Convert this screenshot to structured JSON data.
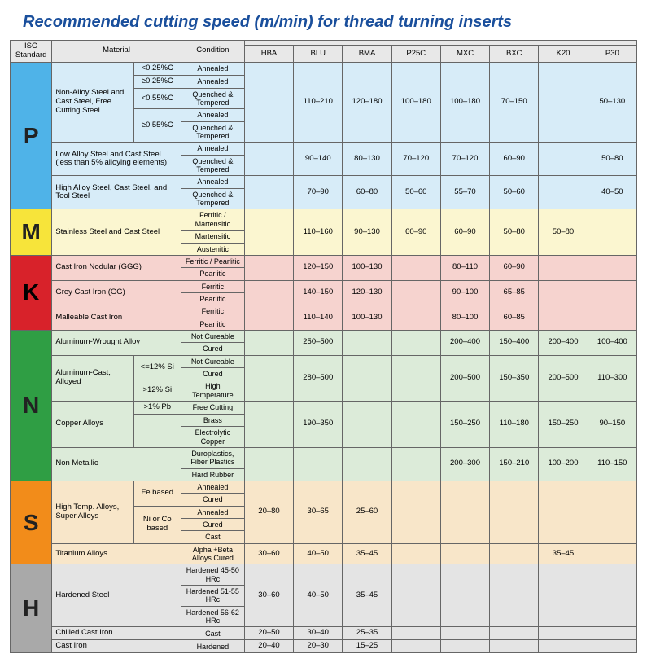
{
  "title": "Recommended cutting speed (m/min) for thread turning inserts",
  "headers": {
    "iso": "ISO Standard",
    "material": "Material",
    "condition": "Condition",
    "cols": [
      "HBA",
      "BLU",
      "BMA",
      "P25C",
      "MXC",
      "BXC",
      "K20",
      "P30"
    ]
  },
  "groups": [
    {
      "iso": "P",
      "isoClass": "bg-P",
      "rowClass": "rg-P",
      "rows": [
        {
          "material": "Non-Alloy Steel and Cast Steel, Free Cutting Steel",
          "matRowspan": 5,
          "sub": "<0.25%C",
          "condition": "Annealed",
          "vals": {
            "HBA": "",
            "BLU": "110–210",
            "BMA": "120–180",
            "P25C": "100–180",
            "MXC": "100–180",
            "BXC": "70–150",
            "K20": "",
            "P30": "50–130"
          },
          "valRowspan": 5
        },
        {
          "sub": "≥0.25%C",
          "condition": "Annealed"
        },
        {
          "sub": "<0.55%C",
          "subRowspan": 1,
          "condition": "Quenched & Tempered"
        },
        {
          "sub": "≥0.55%C",
          "subRowspan": 2,
          "condition": "Annealed"
        },
        {
          "condition": "Quenched & Tempered"
        },
        {
          "material": "Low Alloy Steel and Cast Steel (less than 5% alloying elements)",
          "matRowspan": 2,
          "matColspan": 2,
          "condition": "Annealed",
          "vals": {
            "HBA": "",
            "BLU": "90–140",
            "BMA": "80–130",
            "P25C": "70–120",
            "MXC": "70–120",
            "BXC": "60–90",
            "K20": "",
            "P30": "50–80"
          },
          "valRowspan": 2
        },
        {
          "condition": "Quenched & Tempered"
        },
        {
          "material": "High Alloy Steel, Cast Steel, and Tool Steel",
          "matRowspan": 2,
          "matColspan": 2,
          "condition": "Annealed",
          "vals": {
            "HBA": "",
            "BLU": "70–90",
            "BMA": "60–80",
            "P25C": "50–60",
            "MXC": "55–70",
            "BXC": "50–60",
            "K20": "",
            "P30": "40–50"
          },
          "valRowspan": 2
        },
        {
          "condition": "Quenched & Tempered"
        }
      ]
    },
    {
      "iso": "M",
      "isoClass": "bg-M",
      "rowClass": "rg-M",
      "rows": [
        {
          "material": "Stainless Steel and Cast Steel",
          "matRowspan": 3,
          "matColspan": 2,
          "condition": "Ferritic / Martensitic",
          "vals": {
            "HBA": "",
            "BLU": "110–160",
            "BMA": "90–130",
            "P25C": "60–90",
            "MXC": "60–90",
            "BXC": "50–80",
            "K20": "50–80",
            "P30": ""
          },
          "valRowspan": 3
        },
        {
          "condition": "Martensitic"
        },
        {
          "condition": "Austenitic"
        }
      ]
    },
    {
      "iso": "K",
      "isoClass": "bg-K",
      "rowClass": "rg-K",
      "rows": [
        {
          "material": "Cast Iron Nodular (GGG)",
          "matRowspan": 2,
          "matColspan": 2,
          "condition": "Ferritic / Pearlitic",
          "vals": {
            "HBA": "",
            "BLU": "120–150",
            "BMA": "100–130",
            "P25C": "",
            "MXC": "80–110",
            "BXC": "60–90",
            "K20": "",
            "P30": ""
          },
          "valRowspan": 2
        },
        {
          "condition": "Pearlitic"
        },
        {
          "material": "Grey Cast Iron (GG)",
          "matRowspan": 2,
          "matColspan": 2,
          "condition": "Ferritic",
          "vals": {
            "HBA": "",
            "BLU": "140–150",
            "BMA": "120–130",
            "P25C": "",
            "MXC": "90–100",
            "BXC": "65–85",
            "K20": "",
            "P30": ""
          },
          "valRowspan": 2
        },
        {
          "condition": "Pearlitic"
        },
        {
          "material": "Malleable Cast Iron",
          "matRowspan": 2,
          "matColspan": 2,
          "condition": "Ferritic",
          "vals": {
            "HBA": "",
            "BLU": "110–140",
            "BMA": "100–130",
            "P25C": "",
            "MXC": "80–100",
            "BXC": "60–85",
            "K20": "",
            "P30": ""
          },
          "valRowspan": 2
        },
        {
          "condition": "Pearlitic"
        }
      ]
    },
    {
      "iso": "N",
      "isoClass": "bg-N",
      "rowClass": "rg-N",
      "rows": [
        {
          "material": "Aluminum-Wrought Alloy",
          "matRowspan": 2,
          "matColspan": 2,
          "condition": "Not Cureable",
          "vals": {
            "HBA": "",
            "BLU": "250–500",
            "BMA": "",
            "P25C": "",
            "MXC": "200–400",
            "BXC": "150–400",
            "K20": "200–400",
            "P30": "100–400"
          },
          "valRowspan": 2
        },
        {
          "condition": "Cured"
        },
        {
          "material": "Aluminum-Cast, Alloyed",
          "matRowspan": 3,
          "sub": "<=12% Si",
          "subRowspan": 2,
          "condition": "Not Cureable",
          "vals": {
            "HBA": "",
            "BLU": "280–500",
            "BMA": "",
            "P25C": "",
            "MXC": "200–500",
            "BXC": "150–350",
            "K20": "200–500",
            "P30": "110–300"
          },
          "valRowspan": 3
        },
        {
          "condition": "Cured"
        },
        {
          "sub": ">12% Si",
          "condition": "High Temperature"
        },
        {
          "material": "Copper Alloys",
          "matRowspan": 3,
          "sub": ">1% Pb",
          "condition": "Free Cutting",
          "vals": {
            "HBA": "",
            "BLU": "190–350",
            "BMA": "",
            "P25C": "",
            "MXC": "150–250",
            "BXC": "110–180",
            "K20": "150–250",
            "P30": "90–150"
          },
          "valRowspan": 3
        },
        {
          "sub": "",
          "subRowspan": 2,
          "condition": "Brass"
        },
        {
          "condition": "Electrolytic Copper"
        },
        {
          "material": "Non Metallic",
          "matRowspan": 2,
          "matColspan": 2,
          "condition": "Duroplastics, Fiber Plastics",
          "vals": {
            "HBA": "",
            "BLU": "",
            "BMA": "",
            "P25C": "",
            "MXC": "200–300",
            "BXC": "150–210",
            "K20": "100–200",
            "P30": "110–150"
          },
          "valRowspan": 2
        },
        {
          "condition": "Hard Rubber"
        }
      ]
    },
    {
      "iso": "S",
      "isoClass": "bg-S",
      "rowClass": "rg-S",
      "rows": [
        {
          "material": "High Temp. Alloys, Super Alloys",
          "matRowspan": 5,
          "sub": "Fe based",
          "subRowspan": 2,
          "condition": "Annealed",
          "vals": {
            "HBA": "20–80",
            "BLU": "30–65",
            "BMA": "25–60",
            "P25C": "",
            "MXC": "",
            "BXC": "",
            "K20": "",
            "P30": ""
          },
          "valRowspan": 5
        },
        {
          "condition": "Cured"
        },
        {
          "sub": "Ni or Co based",
          "subRowspan": 3,
          "condition": "Annealed"
        },
        {
          "condition": "Cured"
        },
        {
          "condition": "Cast"
        },
        {
          "material": "Titanium Alloys",
          "matColspan": 2,
          "condition": "Alpha +Beta Alloys Cured",
          "vals": {
            "HBA": "30–60",
            "BLU": "40–50",
            "BMA": "35–45",
            "P25C": "",
            "MXC": "",
            "BXC": "",
            "K20": "35–45",
            "P30": ""
          }
        }
      ]
    },
    {
      "iso": "H",
      "isoClass": "bg-H",
      "rowClass": "rg-H",
      "rows": [
        {
          "material": "Hardened Steel",
          "matRowspan": 3,
          "matColspan": 2,
          "condition": "Hardened 45-50 HRc",
          "vals": {
            "HBA": "30–60",
            "BLU": "40–50",
            "BMA": "35–45",
            "P25C": "",
            "MXC": "",
            "BXC": "",
            "K20": "",
            "P30": ""
          },
          "valRowspan": 3
        },
        {
          "condition": "Hardened 51-55 HRc"
        },
        {
          "condition": "Hardened 56-62 HRc"
        },
        {
          "material": "Chilled Cast Iron",
          "matColspan": 2,
          "condition": "Cast",
          "vals": {
            "HBA": "20–50",
            "BLU": "30–40",
            "BMA": "25–35",
            "P25C": "",
            "MXC": "",
            "BXC": "",
            "K20": "",
            "P30": ""
          }
        },
        {
          "material": "Cast Iron",
          "matColspan": 2,
          "condition": "Hardened",
          "vals": {
            "HBA": "20–40",
            "BLU": "20–30",
            "BMA": "15–25",
            "P25C": "",
            "MXC": "",
            "BXC": "",
            "K20": "",
            "P30": ""
          }
        }
      ]
    }
  ]
}
